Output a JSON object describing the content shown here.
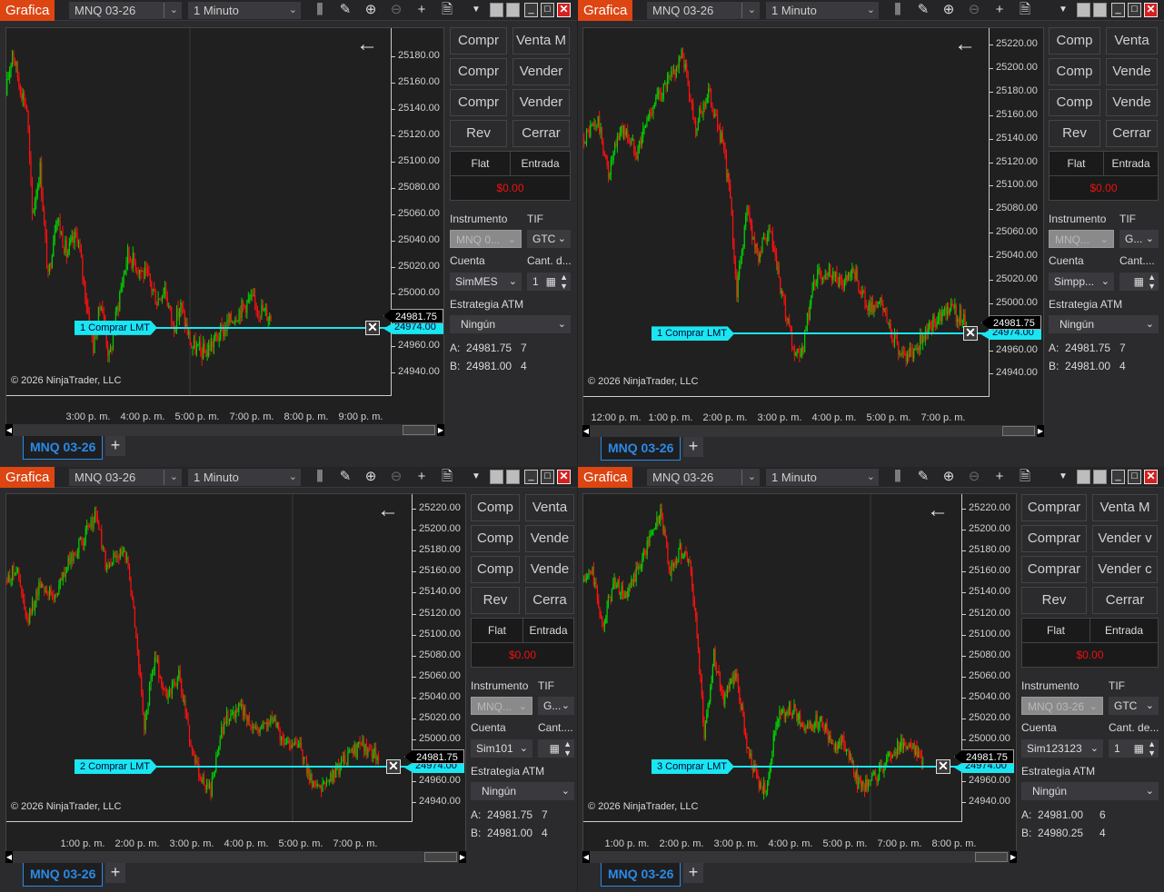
{
  "colors": {
    "accent": "#dd4512",
    "up": "#00d000",
    "down": "#ff1010",
    "order": "#19e6f0",
    "tab": "#2a8ae6",
    "pnl": "#ee1111"
  },
  "panels": [
    {
      "title": "Grafica",
      "instrument": "MNQ 03-26",
      "timeframe": "1 Minuto",
      "toolbar_icons": [
        "bar-chart-icon",
        "pencil-icon",
        "zoom-in-icon",
        "zoom-out-icon",
        "crosshair-icon",
        "properties-icon"
      ],
      "copyright": "© 2026 NinjaTrader, LLC",
      "order_label": "1  Comprar LMT",
      "order_price": "24974.00",
      "last_price": "24981.75",
      "tab": "MNQ 03-26",
      "buy_buttons": [
        "Compr",
        "Compr",
        "Compr"
      ],
      "sell_buttons": [
        "Venta M",
        "Vender",
        "Vender"
      ],
      "rev": "Rev",
      "close": "Cerrar",
      "position": "Flat",
      "entry": "Entrada",
      "pnl": "$0.00",
      "instrument_label": "Instrumento",
      "tif_label": "TIF",
      "instrument_value": "MNQ 0...",
      "tif_value": "GTC",
      "account_label": "Cuenta",
      "qty_label": "Cant. d...",
      "account_value": "SimMES",
      "qty_value": "1",
      "atm_label": "Estrategia ATM",
      "atm_value": "Ningún",
      "ask": {
        "label": "A:",
        "price": "24981.75",
        "size": "7"
      },
      "bid": {
        "label": "B:",
        "price": "24981.00",
        "size": "4"
      },
      "chart_data": {
        "type": "candlestick",
        "ylim": [
          24923,
          25201
        ],
        "y_ticks": [
          "25180.00",
          "25160.00",
          "25140.00",
          "25120.00",
          "25100.00",
          "25080.00",
          "25060.00",
          "25040.00",
          "25020.00",
          "25000.00",
          "24960.00",
          "24940.00"
        ],
        "x_ticks": [
          "3:00 p. m.",
          "4:00 p. m.",
          "5:00 p. m.",
          "7:00 p. m.",
          "8:00 p. m.",
          "9:00 p. m."
        ],
        "bars": 200,
        "price_path": [
          [
            0,
            25150
          ],
          [
            5,
            25185
          ],
          [
            10,
            25160
          ],
          [
            16,
            25140
          ],
          [
            20,
            25060
          ],
          [
            26,
            25095
          ],
          [
            32,
            25010
          ],
          [
            38,
            25060
          ],
          [
            46,
            25030
          ],
          [
            54,
            25045
          ],
          [
            60,
            25000
          ],
          [
            66,
            24960
          ],
          [
            72,
            24995
          ],
          [
            78,
            24950
          ],
          [
            86,
            25000
          ],
          [
            92,
            25030
          ],
          [
            100,
            25020
          ],
          [
            108,
            25010
          ],
          [
            114,
            24995
          ],
          [
            120,
            25005
          ],
          [
            126,
            24975
          ],
          [
            132,
            24990
          ],
          [
            140,
            24960
          ],
          [
            150,
            24955
          ],
          [
            162,
            24970
          ],
          [
            174,
            24985
          ],
          [
            184,
            24995
          ],
          [
            200,
            24982
          ]
        ]
      }
    },
    {
      "title": "Grafica",
      "instrument": "MNQ 03-26",
      "timeframe": "1 Minuto",
      "toolbar_icons": [
        "bar-chart-icon",
        "pencil-icon",
        "zoom-in-icon",
        "zoom-out-icon",
        "crosshair-icon",
        "properties-icon"
      ],
      "copyright": "© 2026 NinjaTrader, LLC",
      "order_label": "1  Comprar LMT",
      "order_price": "24974.00",
      "last_price": "24981.75",
      "tab": "MNQ 03-26",
      "buy_buttons": [
        "Comp",
        "Comp",
        "Comp"
      ],
      "sell_buttons": [
        "Venta",
        "Vende",
        "Vende"
      ],
      "rev": "Rev",
      "close": "Cerrar",
      "position": "Flat",
      "entry": "Entrada",
      "pnl": "$0.00",
      "instrument_label": "Instrumento",
      "tif_label": "TIF",
      "instrument_value": "MNQ...",
      "tif_value": "G...",
      "account_label": "Cuenta",
      "qty_label": "Cant....",
      "account_value": "Simpp...",
      "qty_value": "",
      "atm_label": "Estrategia ATM",
      "atm_value": "Ningún",
      "ask": {
        "label": "A:",
        "price": "24981.75",
        "size": "7"
      },
      "bid": {
        "label": "B:",
        "price": "24981.00",
        "size": "4"
      },
      "chart_data": {
        "type": "candlestick",
        "ylim": [
          24921,
          25234
        ],
        "y_ticks": [
          "25220.00",
          "25200.00",
          "25180.00",
          "25160.00",
          "25140.00",
          "25120.00",
          "25100.00",
          "25080.00",
          "25060.00",
          "25040.00",
          "25020.00",
          "25000.00",
          "24960.00",
          "24940.00"
        ],
        "x_ticks": [
          "12:00 p. m.",
          "1:00 p. m.",
          "2:00 p. m.",
          "3:00 p. m.",
          "4:00 p. m.",
          "5:00 p. m.",
          "7:00 p. m."
        ],
        "bars": 300,
        "price_path": [
          [
            0,
            25140
          ],
          [
            12,
            25155
          ],
          [
            20,
            25110
          ],
          [
            30,
            25150
          ],
          [
            42,
            25130
          ],
          [
            55,
            25170
          ],
          [
            68,
            25190
          ],
          [
            78,
            25212
          ],
          [
            88,
            25150
          ],
          [
            98,
            25180
          ],
          [
            108,
            25140
          ],
          [
            114,
            25100
          ],
          [
            120,
            25010
          ],
          [
            128,
            25080
          ],
          [
            136,
            25040
          ],
          [
            146,
            25060
          ],
          [
            156,
            25000
          ],
          [
            164,
            24960
          ],
          [
            170,
            24950
          ],
          [
            180,
            25020
          ],
          [
            192,
            25030
          ],
          [
            202,
            25015
          ],
          [
            212,
            25025
          ],
          [
            222,
            24995
          ],
          [
            232,
            25000
          ],
          [
            246,
            24960
          ],
          [
            256,
            24955
          ],
          [
            270,
            24980
          ],
          [
            284,
            24998
          ],
          [
            300,
            24982
          ]
        ]
      }
    },
    {
      "title": "Grafica",
      "instrument": "MNQ 03-26",
      "timeframe": "1 Minuto",
      "toolbar_icons": [
        "bar-chart-icon",
        "pencil-icon",
        "zoom-in-icon",
        "zoom-out-icon",
        "crosshair-icon",
        "properties-icon"
      ],
      "copyright": "© 2026 NinjaTrader, LLC",
      "order_label": "2  Comprar LMT",
      "order_price": "24974.00",
      "last_price": "24981.75",
      "tab": "MNQ 03-26",
      "buy_buttons": [
        "Comp",
        "Comp",
        "Comp"
      ],
      "sell_buttons": [
        "Venta",
        "Vende",
        "Vende"
      ],
      "rev": "Rev",
      "close": "Cerra",
      "position": "Flat",
      "entry": "Entrada",
      "pnl": "$0.00",
      "instrument_label": "Instrumento",
      "tif_label": "TIF",
      "instrument_value": "MNQ...",
      "tif_value": "G...",
      "account_label": "Cuenta",
      "qty_label": "Cant....",
      "account_value": "Sim101",
      "qty_value": "",
      "atm_label": "Estrategia ATM",
      "atm_value": "Ningún",
      "ask": {
        "label": "A:",
        "price": "24981.75",
        "size": "7"
      },
      "bid": {
        "label": "B:",
        "price": "24981.00",
        "size": "4"
      },
      "chart_data": {
        "type": "candlestick",
        "ylim": [
          24922,
          25234
        ],
        "y_ticks": [
          "25220.00",
          "25200.00",
          "25180.00",
          "25160.00",
          "25140.00",
          "25120.00",
          "25100.00",
          "25080.00",
          "25060.00",
          "25040.00",
          "25020.00",
          "25000.00",
          "24960.00",
          "24940.00"
        ],
        "x_ticks": [
          "1:00 p. m.",
          "2:00 p. m.",
          "3:00 p. m.",
          "4:00 p. m.",
          "5:00 p. m.",
          "7:00 p. m."
        ],
        "bars": 280,
        "price_path": [
          [
            0,
            25150
          ],
          [
            8,
            25165
          ],
          [
            16,
            25110
          ],
          [
            26,
            25150
          ],
          [
            36,
            25135
          ],
          [
            48,
            25170
          ],
          [
            60,
            25195
          ],
          [
            68,
            25215
          ],
          [
            76,
            25160
          ],
          [
            84,
            25180
          ],
          [
            92,
            25170
          ],
          [
            98,
            25100
          ],
          [
            104,
            25010
          ],
          [
            112,
            25080
          ],
          [
            120,
            25040
          ],
          [
            130,
            25060
          ],
          [
            140,
            24990
          ],
          [
            148,
            24960
          ],
          [
            154,
            24950
          ],
          [
            164,
            25020
          ],
          [
            176,
            25030
          ],
          [
            188,
            25010
          ],
          [
            200,
            25020
          ],
          [
            210,
            24995
          ],
          [
            218,
            25000
          ],
          [
            230,
            24960
          ],
          [
            240,
            24955
          ],
          [
            254,
            24980
          ],
          [
            268,
            24995
          ],
          [
            280,
            24982
          ]
        ]
      }
    },
    {
      "title": "Grafica",
      "instrument": "MNQ 03-26",
      "timeframe": "1 Minuto",
      "toolbar_icons": [
        "bar-chart-icon",
        "pencil-icon",
        "zoom-in-icon",
        "zoom-out-icon",
        "crosshair-icon",
        "properties-icon"
      ],
      "copyright": "© 2026 NinjaTrader, LLC",
      "order_label": "3  Comprar LMT",
      "order_price": "24974.00",
      "last_price": "24981.75",
      "tab": "MNQ 03-26",
      "buy_buttons": [
        "Comprar",
        "Comprar",
        "Comprar"
      ],
      "sell_buttons": [
        "Venta M",
        "Vender v",
        "Vender c"
      ],
      "rev": "Rev",
      "close": "Cerrar",
      "position": "Flat",
      "entry": "Entrada",
      "pnl": "$0.00",
      "instrument_label": "Instrumento",
      "tif_label": "TIF",
      "instrument_value": "MNQ 03-26",
      "tif_value": "GTC",
      "account_label": "Cuenta",
      "qty_label": "Cant. de...",
      "account_value": "Sim123123",
      "qty_value": "1",
      "atm_label": "Estrategia ATM",
      "atm_value": "Ningún",
      "ask": {
        "label": "A:",
        "price": "24981.00",
        "size": "6"
      },
      "bid": {
        "label": "B:",
        "price": "24980.25",
        "size": "4"
      },
      "chart_data": {
        "type": "candlestick",
        "ylim": [
          24922,
          25234
        ],
        "y_ticks": [
          "25220.00",
          "25200.00",
          "25180.00",
          "25160.00",
          "25140.00",
          "25120.00",
          "25100.00",
          "25080.00",
          "25060.00",
          "25040.00",
          "25020.00",
          "25000.00",
          "24960.00",
          "24940.00"
        ],
        "x_ticks": [
          "1:00 p. m.",
          "2:00 p. m.",
          "3:00 p. m.",
          "4:00 p. m.",
          "5:00 p. m.",
          "7:00 p. m.",
          "8:00 p. m."
        ],
        "bars": 280,
        "price_path": [
          [
            0,
            25150
          ],
          [
            8,
            25160
          ],
          [
            16,
            25110
          ],
          [
            26,
            25150
          ],
          [
            36,
            25135
          ],
          [
            48,
            25170
          ],
          [
            58,
            25200
          ],
          [
            64,
            25215
          ],
          [
            72,
            25160
          ],
          [
            80,
            25180
          ],
          [
            88,
            25170
          ],
          [
            94,
            25100
          ],
          [
            100,
            25005
          ],
          [
            108,
            25080
          ],
          [
            116,
            25040
          ],
          [
            126,
            25060
          ],
          [
            136,
            24990
          ],
          [
            144,
            24960
          ],
          [
            150,
            24950
          ],
          [
            160,
            25020
          ],
          [
            172,
            25030
          ],
          [
            184,
            25010
          ],
          [
            196,
            25020
          ],
          [
            206,
            24995
          ],
          [
            214,
            25000
          ],
          [
            226,
            24960
          ],
          [
            236,
            24955
          ],
          [
            250,
            24980
          ],
          [
            264,
            24998
          ],
          [
            280,
            24982
          ]
        ]
      }
    }
  ]
}
